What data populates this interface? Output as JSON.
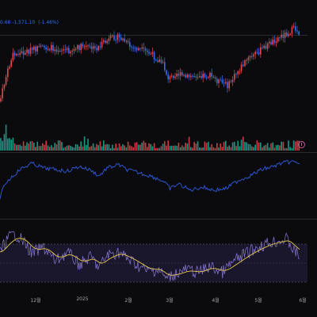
{
  "status_bar": {
    "price_tail": "0.68",
    "change": "-1,571.10",
    "change_pct": "(-1.46%)"
  },
  "time_axis": {
    "labels": [
      "12월",
      "2025",
      "2월",
      "3월",
      "4월",
      "5월",
      "6월"
    ]
  },
  "colors": {
    "up": "#e5484d",
    "down": "#3a6fe6",
    "vol_up": "#18b19a",
    "vol_down": "#e5484d",
    "line": "#2f5be0",
    "rsi": "#8a78d8",
    "rsi_ma": "#e6c94a",
    "band": "#1c1830"
  },
  "icons": {
    "scroll_button": "scroll-to-latest-icon"
  }
}
